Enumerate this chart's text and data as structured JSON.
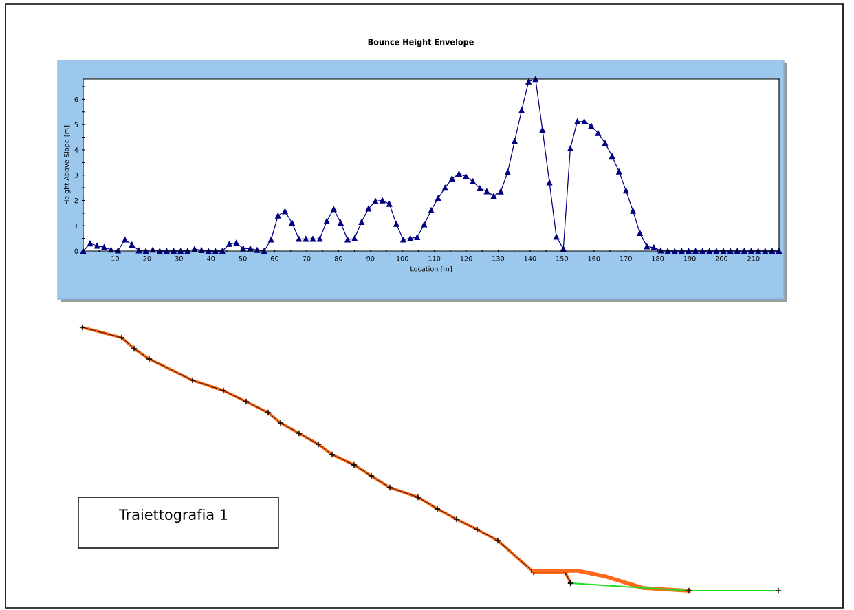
{
  "chart_data": [
    {
      "type": "line",
      "title": "Bounce Height Envelope",
      "xlabel": "Location [m]",
      "ylabel": "Height Above Slope [m]",
      "x": [
        0,
        2.18,
        4.36,
        6.54,
        8.72,
        10.9,
        13.08,
        15.26,
        17.44,
        19.62,
        21.8,
        23.98,
        26.16,
        28.34,
        30.52,
        32.7,
        34.88,
        37.06,
        39.24,
        41.42,
        43.6,
        45.78,
        47.96,
        50.14,
        52.32,
        54.5,
        56.68,
        58.86,
        61.04,
        63.22,
        65.4,
        67.58,
        69.76,
        71.94,
        74.12,
        76.3,
        78.48,
        80.66,
        82.84,
        85.02,
        87.2,
        89.38,
        91.56,
        93.74,
        95.92,
        98.1,
        100.28,
        102.46,
        104.64,
        106.82,
        109,
        111.18,
        113.36,
        115.54,
        117.72,
        119.9,
        122.08,
        124.26,
        126.44,
        128.62,
        130.8,
        132.98,
        135.16,
        137.34,
        139.52,
        141.7,
        143.88,
        146.06,
        148.24,
        150.42,
        152.6,
        154.78,
        156.96,
        159.14,
        161.32,
        163.5,
        165.68,
        167.86,
        170.04,
        172.22,
        174.4,
        176.58,
        178.76,
        180.94,
        183.12,
        185.3,
        187.48,
        189.66,
        191.84,
        194.02,
        196.2,
        198.38,
        200.56,
        202.74,
        204.92,
        207.1,
        209.28,
        211.46,
        213.64,
        215.82,
        218
      ],
      "series": [
        {
          "color": "#000080",
          "values": [
            0,
            0.3,
            0.21,
            0.15,
            0.05,
            0.02,
            0.45,
            0.25,
            0.02,
            0,
            0.05,
            0,
            0,
            0,
            0,
            0,
            0.08,
            0.03,
            0,
            0,
            0,
            0.28,
            0.32,
            0.1,
            0.1,
            0.04,
            0,
            0.45,
            1.4,
            1.57,
            1.12,
            0.48,
            0.48,
            0.48,
            0.48,
            1.18,
            1.66,
            1.12,
            0.45,
            0.5,
            1.15,
            1.68,
            1.97,
            2.0,
            1.86,
            1.07,
            0.45,
            0.5,
            0.55,
            1.05,
            1.61,
            2.09,
            2.5,
            2.86,
            3.05,
            2.95,
            2.75,
            2.48,
            2.36,
            2.18,
            2.35,
            3.12,
            4.35,
            5.56,
            6.7,
            6.8,
            4.79,
            2.71,
            0.56,
            0.09,
            4.06,
            5.12,
            5.12,
            4.95,
            4.66,
            4.27,
            3.75,
            3.14,
            2.39,
            1.59,
            0.71,
            0.18,
            0.14,
            0.02,
            0,
            0,
            0,
            0,
            0,
            0,
            0,
            0,
            0,
            0,
            0,
            0,
            0,
            0,
            0,
            0,
            0
          ]
        }
      ],
      "xlim": [
        0,
        218
      ],
      "ylim": [
        0,
        6.8
      ],
      "xticks": [
        {
          "value": 5,
          "label": null
        },
        10,
        {
          "value": 15,
          "label": null
        },
        20,
        {
          "value": 25,
          "label": null
        },
        30,
        {
          "value": 35,
          "label": null
        },
        40,
        {
          "value": 45,
          "label": null
        },
        50,
        {
          "value": 55,
          "label": null
        },
        60,
        {
          "value": 65,
          "label": null
        },
        70,
        {
          "value": 75,
          "label": null
        },
        80,
        {
          "value": 85,
          "label": null
        },
        90,
        {
          "value": 95,
          "label": null
        },
        100,
        {
          "value": 105,
          "label": null
        },
        110,
        {
          "value": 115,
          "label": null
        },
        120,
        {
          "value": 125,
          "label": null
        },
        130,
        {
          "value": 135,
          "label": null
        },
        140,
        {
          "value": 145,
          "label": null
        },
        150,
        {
          "value": 155,
          "label": null
        },
        160,
        {
          "value": 165,
          "label": null
        },
        170,
        {
          "value": 175,
          "label": null
        },
        180,
        {
          "value": 185,
          "label": null
        },
        190,
        {
          "value": 195,
          "label": null
        },
        200,
        {
          "value": 205,
          "label": null
        },
        210,
        {
          "value": 215,
          "label": null
        }
      ],
      "yticks": [
        0,
        {
          "value": 0.5,
          "label": null
        },
        1,
        {
          "value": 1.5,
          "label": null
        },
        2,
        {
          "value": 2.5,
          "label": null
        },
        3,
        {
          "value": 3.5,
          "label": null
        },
        4,
        {
          "value": 4.5,
          "label": null
        },
        5,
        {
          "value": 5.5,
          "label": null
        },
        6,
        {
          "value": 6.5,
          "label": null
        }
      ],
      "marker": "triangle",
      "grid": false,
      "legend": false
    },
    {
      "type": "other",
      "annotations": [
        "Traiettografia 1"
      ]
    }
  ]
}
